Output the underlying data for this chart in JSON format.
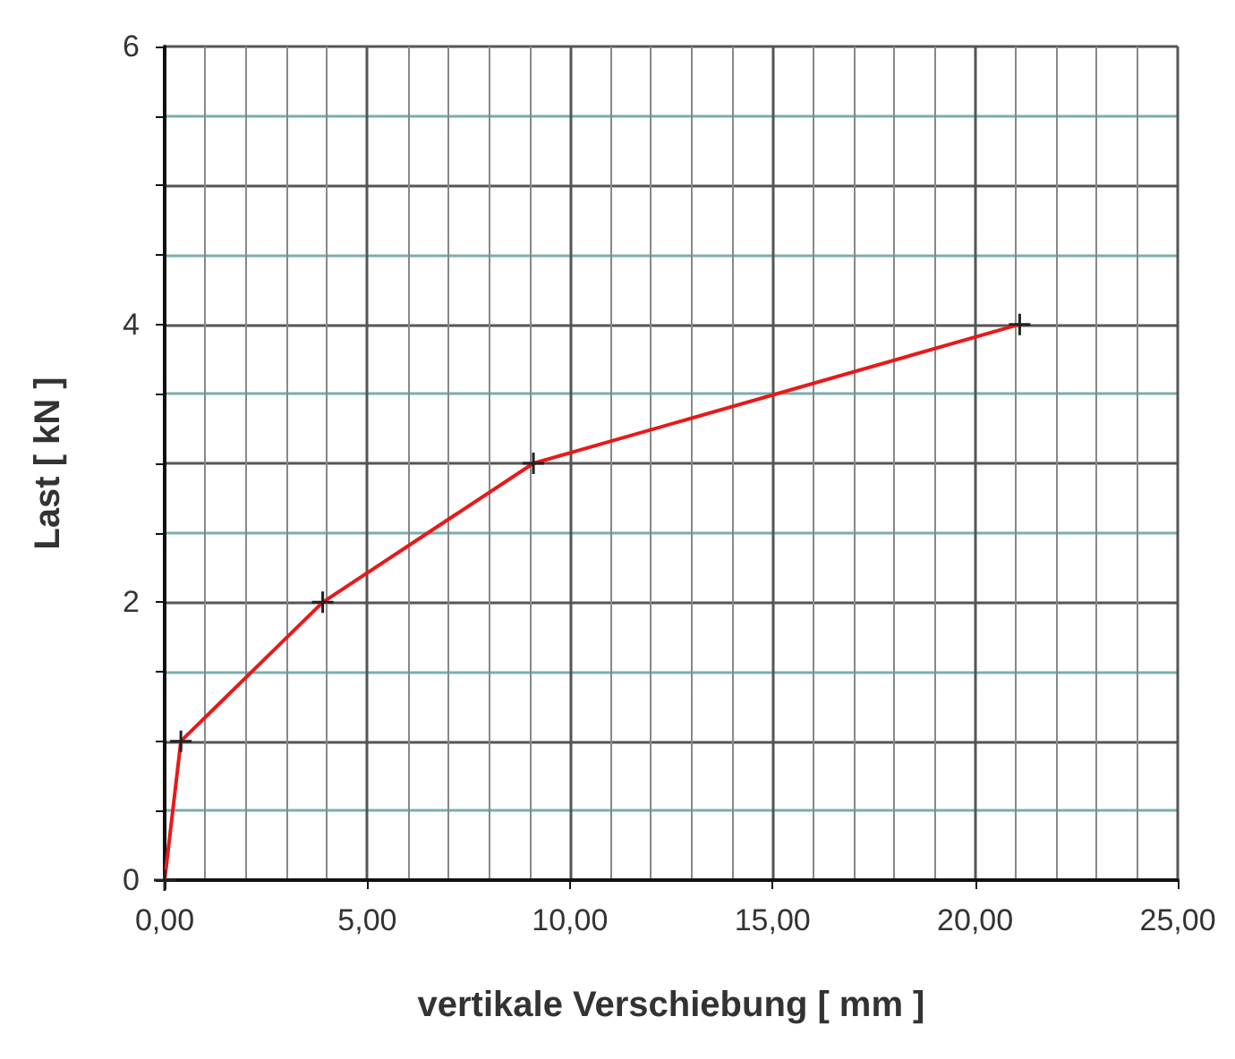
{
  "chart_data": {
    "type": "line",
    "xlabel": "vertikale Verschiebung [ mm ]",
    "ylabel": "Last [ kN ]",
    "x": [
      0,
      0.4,
      3.9,
      9.1,
      21.1
    ],
    "series": [
      {
        "color": "#e8191a",
        "values": [
          0,
          1,
          2,
          3,
          4
        ]
      }
    ],
    "marker": "cross",
    "line_style": "solid",
    "grid": true,
    "xlim": [
      0,
      25
    ],
    "xticks": [
      {
        "value": 0,
        "label": "0,00"
      },
      {
        "value": 5,
        "label": "5,00"
      },
      {
        "value": 10,
        "label": "10,00"
      },
      {
        "value": 15,
        "label": "15,00"
      },
      {
        "value": 20,
        "label": "20,00"
      },
      {
        "value": 25,
        "label": "25,00"
      }
    ],
    "ylim": [
      0,
      6
    ],
    "yticks": [
      0,
      {
        "value": 0.5,
        "label": null
      },
      {
        "value": 1,
        "label": null
      },
      {
        "value": 1.5,
        "label": null
      },
      2,
      {
        "value": 2.5,
        "label": null
      },
      {
        "value": 3,
        "label": null
      },
      {
        "value": 3.5,
        "label": null
      },
      4,
      {
        "value": 4.5,
        "label": null
      },
      {
        "value": 5,
        "label": null
      },
      {
        "value": 5.5,
        "label": null
      },
      6
    ]
  }
}
